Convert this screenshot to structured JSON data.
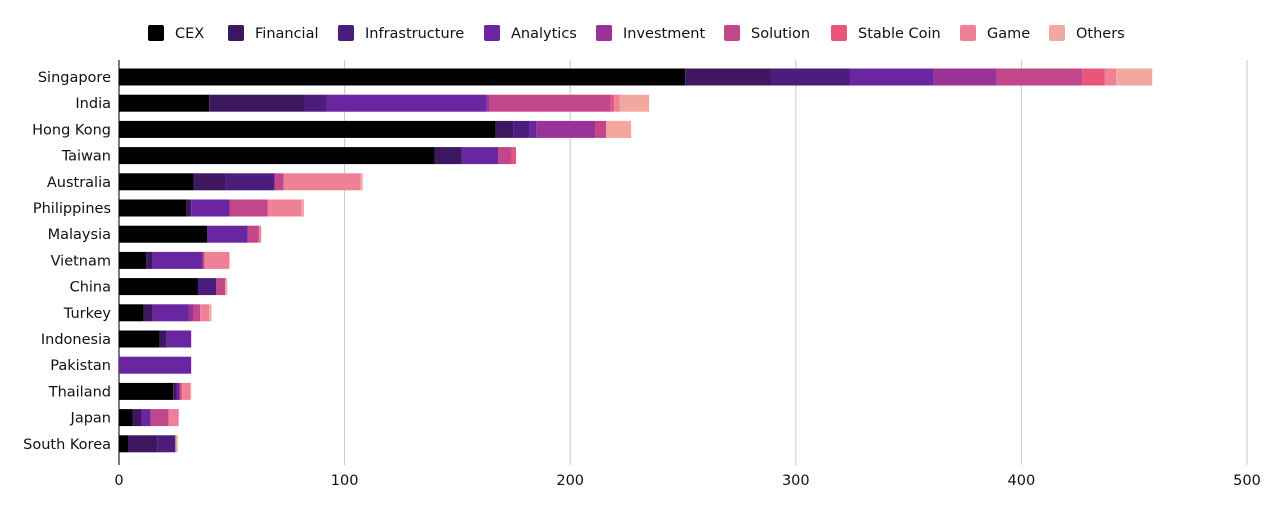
{
  "chart_data": {
    "type": "bar",
    "orientation": "horizontal",
    "stacked": true,
    "title": "",
    "xlabel": "",
    "ylabel": "",
    "xlim": [
      0,
      500
    ],
    "x_ticks": [
      "0",
      "100",
      "200",
      "300",
      "400",
      "500"
    ],
    "grid": "vertical",
    "legend_position": "top",
    "categories": [
      "Singapore",
      "India",
      "Hong Kong",
      "Taiwan",
      "Australia",
      "Philippines",
      "Malaysia",
      "Vietnam",
      "China",
      "Turkey",
      "Indonesia",
      "Pakistan",
      "Thailand",
      "Japan",
      "South Korea"
    ],
    "series": [
      {
        "name": "CEX",
        "color": "#000000",
        "values": [
          251,
          40,
          167,
          140,
          33,
          30,
          39,
          12,
          35,
          11,
          18,
          0,
          24,
          6,
          4
        ]
      },
      {
        "name": "Financial",
        "color": "#3d1760",
        "values": [
          38,
          42,
          8,
          12,
          14,
          2,
          0,
          3,
          0,
          4,
          3,
          0,
          1.5,
          4,
          13
        ]
      },
      {
        "name": "Infrastructure",
        "color": "#4c1d7c",
        "values": [
          35,
          10,
          7,
          0,
          22,
          0,
          0,
          0,
          8,
          0,
          0,
          0,
          0,
          0,
          8
        ]
      },
      {
        "name": "Analytics",
        "color": "#6a25a0",
        "values": [
          37,
          71,
          3,
          16,
          0,
          17,
          18,
          22,
          0,
          16,
          11,
          32,
          1.5,
          4,
          0
        ]
      },
      {
        "name": "Investment",
        "color": "#9a3398",
        "values": [
          28,
          1,
          26,
          0,
          0,
          0,
          0,
          0,
          0,
          2,
          0,
          0,
          0,
          0,
          0
        ]
      },
      {
        "name": "Solution",
        "color": "#c2478a",
        "values": [
          38,
          54,
          5,
          6,
          4,
          17,
          5,
          1,
          4,
          3,
          0,
          0,
          0,
          8,
          0
        ]
      },
      {
        "name": "Stable Coin",
        "color": "#e8567c",
        "values": [
          10,
          1.5,
          0,
          2,
          0,
          0,
          0,
          0,
          0,
          0,
          0,
          0,
          1,
          0,
          0
        ]
      },
      {
        "name": "Game",
        "color": "#ee8196",
        "values": [
          5,
          2.5,
          0,
          0,
          34,
          15,
          1,
          11,
          0,
          4,
          0,
          0,
          3.5,
          4.5,
          0
        ]
      },
      {
        "name": "Others",
        "color": "#f2a89e",
        "values": [
          16,
          13,
          11,
          0,
          1,
          1,
          0,
          0,
          1,
          1,
          0,
          0,
          0.5,
          0,
          1
        ]
      }
    ]
  }
}
